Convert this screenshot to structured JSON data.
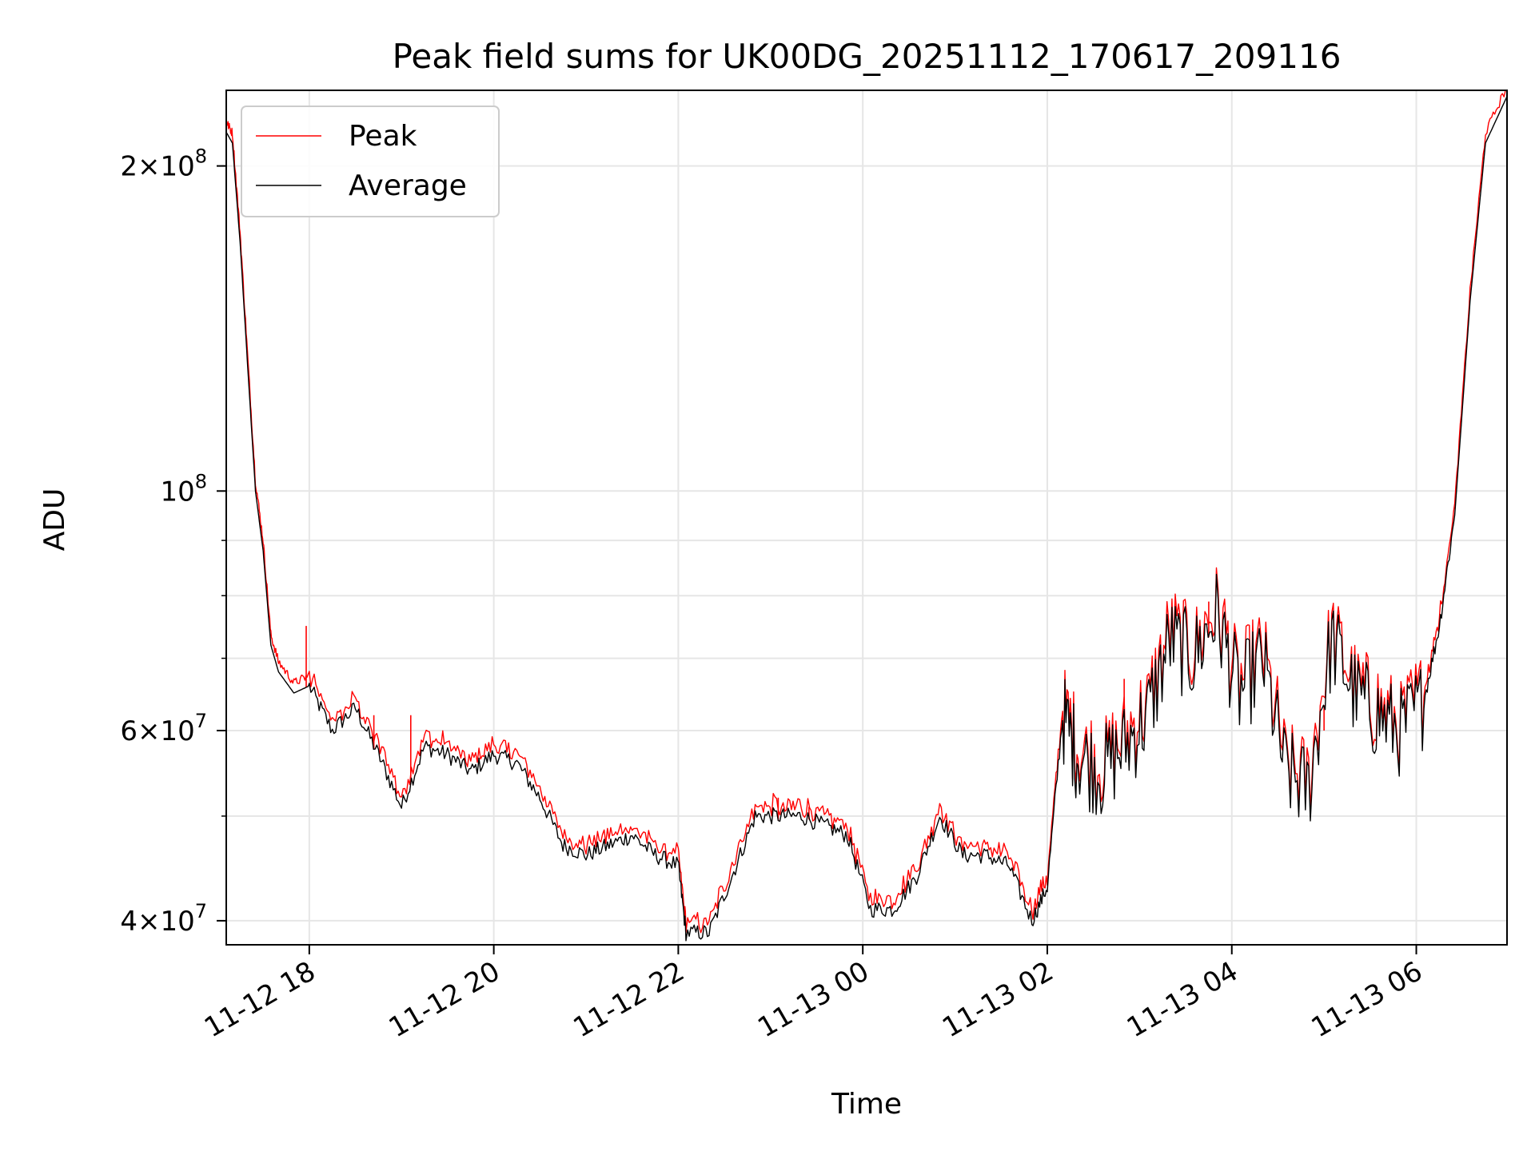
{
  "chart_data": {
    "type": "line",
    "title": "Peak field sums for UK00DG_20251112_170617_209116",
    "xlabel": "Time",
    "ylabel": "ADU",
    "yscale": "log",
    "grid": true,
    "legend_position": "top-left",
    "xlim": [
      "2025-11-12 17:06",
      "2025-11-13 06:59"
    ],
    "ylim": [
      38000000,
      235000000
    ],
    "x_ticks": [
      "11-12 18",
      "11-12 20",
      "11-12 22",
      "11-13 00",
      "11-13 02",
      "11-13 04",
      "11-13 06"
    ],
    "y_ticks": [
      {
        "value": 40000000,
        "mantissa": "4",
        "exponent": "7"
      },
      {
        "value": 60000000,
        "mantissa": "6",
        "exponent": "7"
      },
      {
        "value": 100000000,
        "mantissa": "",
        "exponent": "8"
      },
      {
        "value": 200000000,
        "mantissa": "2",
        "exponent": "8"
      }
    ],
    "series": [
      {
        "name": "Peak",
        "color": "#ff0000"
      },
      {
        "name": "Average",
        "color": "#000000"
      }
    ],
    "x": [
      "2025-11-12 17:06",
      "2025-11-12 17:10",
      "2025-11-12 17:15",
      "2025-11-12 17:20",
      "2025-11-12 17:25",
      "2025-11-12 17:30",
      "2025-11-12 17:35",
      "2025-11-12 17:40",
      "2025-11-12 17:50",
      "2025-11-12 18:00",
      "2025-11-12 18:15",
      "2025-11-12 18:30",
      "2025-11-12 18:45",
      "2025-11-12 19:00",
      "2025-11-12 19:15",
      "2025-11-12 19:30",
      "2025-11-12 19:45",
      "2025-11-12 20:00",
      "2025-11-12 20:15",
      "2025-11-12 20:30",
      "2025-11-12 20:45",
      "2025-11-12 21:00",
      "2025-11-12 21:15",
      "2025-11-12 21:30",
      "2025-11-12 21:45",
      "2025-11-12 22:00",
      "2025-11-12 22:05",
      "2025-11-12 22:20",
      "2025-11-12 22:35",
      "2025-11-12 22:50",
      "2025-11-12 23:05",
      "2025-11-12 23:20",
      "2025-11-12 23:35",
      "2025-11-12 23:50",
      "2025-11-13 00:05",
      "2025-11-13 00:20",
      "2025-11-13 00:35",
      "2025-11-13 00:50",
      "2025-11-13 01:05",
      "2025-11-13 01:20",
      "2025-11-13 01:35",
      "2025-11-13 01:50",
      "2025-11-13 02:00",
      "2025-11-13 02:10",
      "2025-11-13 02:20",
      "2025-11-13 02:35",
      "2025-11-13 02:50",
      "2025-11-13 03:05",
      "2025-11-13 03:20",
      "2025-11-13 03:35",
      "2025-11-13 03:50",
      "2025-11-13 04:05",
      "2025-11-13 04:20",
      "2025-11-13 04:35",
      "2025-11-13 04:50",
      "2025-11-13 05:05",
      "2025-11-13 05:20",
      "2025-11-13 05:35",
      "2025-11-13 05:50",
      "2025-11-13 06:05",
      "2025-11-13 06:15",
      "2025-11-13 06:25",
      "2025-11-13 06:35",
      "2025-11-13 06:45",
      "2025-11-13 06:59"
    ],
    "y": [
      215000000,
      210000000,
      170000000,
      130000000,
      100000000,
      88000000,
      72000000,
      68000000,
      65000000,
      66000000,
      60000000,
      63000000,
      57000000,
      51000000,
      58000000,
      57000000,
      55000000,
      57000000,
      56000000,
      52000000,
      47000000,
      46000000,
      47000000,
      48000000,
      46000000,
      45000000,
      39000000,
      39000000,
      44000000,
      50000000,
      50000000,
      50000000,
      49000000,
      48000000,
      41000000,
      41000000,
      44000000,
      50000000,
      46000000,
      46000000,
      45000000,
      40000000,
      43000000,
      62000000,
      57000000,
      55000000,
      58000000,
      62000000,
      73000000,
      70000000,
      77000000,
      65000000,
      70000000,
      55000000,
      53000000,
      73000000,
      65000000,
      62000000,
      60000000,
      64000000,
      75000000,
      95000000,
      150000000,
      210000000,
      232000000
    ],
    "peak_spikes": [
      {
        "x": "2025-11-12 17:58",
        "y": 75000000
      },
      {
        "x": "2025-11-12 18:42",
        "y": 62000000
      },
      {
        "x": "2025-11-12 19:06",
        "y": 62000000
      },
      {
        "x": "2025-11-12 23:05",
        "y": 52000000
      },
      {
        "x": "2025-11-12 23:25",
        "y": 51000000
      },
      {
        "x": "2025-11-13 02:50",
        "y": 67000000
      },
      {
        "x": "2025-11-13 03:45",
        "y": 79000000
      },
      {
        "x": "2025-11-13 05:00",
        "y": 60000000
      }
    ]
  }
}
